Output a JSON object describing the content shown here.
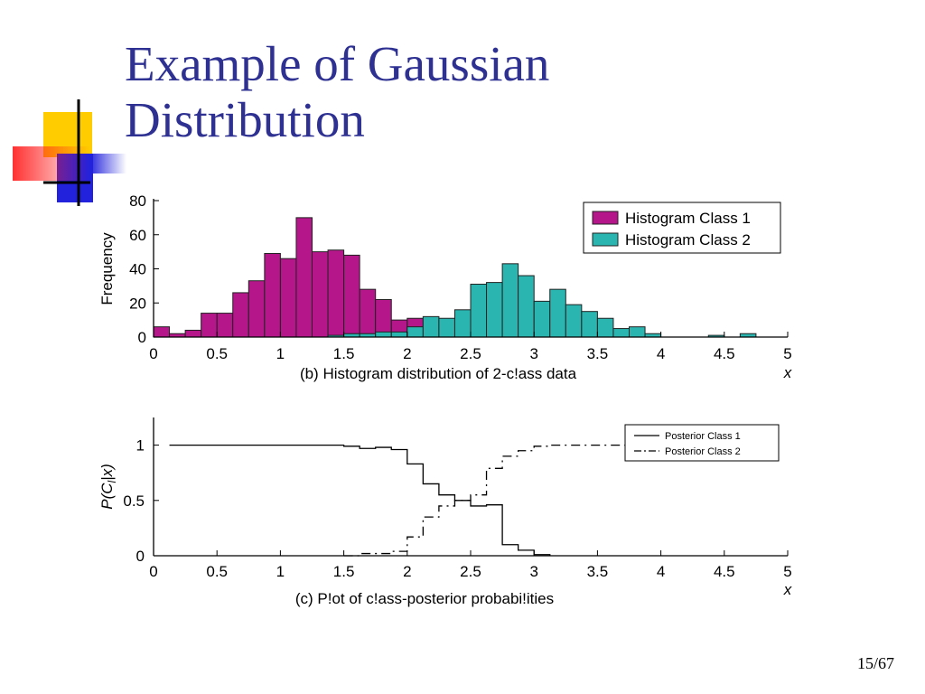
{
  "slide": {
    "title_line1": "Example of Gaussian",
    "title_line2": "Distribution",
    "slide_number": "15/67"
  },
  "decoration": {
    "icon": "colored-squares-logo"
  },
  "chart_data": [
    {
      "type": "bar",
      "subtype": "histogram",
      "title": "(b) Histogram distribution of 2-c!ass data",
      "xlabel": "x",
      "ylabel": "Frequency",
      "xlim": [
        0,
        5
      ],
      "ylim": [
        0,
        80
      ],
      "xticks": [
        "0",
        "0.5",
        "1",
        "1.5",
        "2",
        "2.5",
        "3",
        "3.5",
        "4",
        "4.5",
        "5"
      ],
      "yticks": [
        "0",
        "20",
        "40",
        "60",
        "80"
      ],
      "legend_position": "top-right",
      "bin_width": 0.125,
      "series": [
        {
          "name": "Histogram Class 1",
          "color": "#b5178b",
          "bin_starts": [
            0.0,
            0.125,
            0.25,
            0.375,
            0.5,
            0.625,
            0.75,
            0.875,
            1.0,
            1.125,
            1.25,
            1.375,
            1.5,
            1.625,
            1.75,
            1.875,
            2.0,
            2.125,
            2.25,
            2.375
          ],
          "values": [
            6,
            2,
            4,
            14,
            14,
            26,
            33,
            49,
            46,
            70,
            50,
            51,
            48,
            28,
            22,
            10,
            11,
            3,
            1,
            1
          ]
        },
        {
          "name": "Histogram Class 2",
          "color": "#2ab5b0",
          "bin_starts": [
            1.375,
            1.5,
            1.625,
            1.75,
            1.875,
            2.0,
            2.125,
            2.25,
            2.375,
            2.5,
            2.625,
            2.75,
            2.875,
            3.0,
            3.125,
            3.25,
            3.375,
            3.5,
            3.625,
            3.75,
            3.875,
            4.0,
            4.125,
            4.25,
            4.375,
            4.5,
            4.625,
            4.75
          ],
          "values": [
            1,
            2,
            2,
            3,
            3,
            6,
            12,
            11,
            16,
            31,
            32,
            43,
            36,
            21,
            28,
            19,
            15,
            11,
            5,
            6,
            2,
            0,
            0,
            0,
            1,
            0,
            2,
            0
          ]
        }
      ]
    },
    {
      "type": "line",
      "subtype": "step",
      "title": "(c) P!ot of c!ass-posterior probabi!ities",
      "xlabel": "x",
      "ylabel": "P(C",
      "ylabel_subscript": "l",
      "ylabel_suffix": "|x)",
      "xlim": [
        0,
        5
      ],
      "ylim": [
        0,
        1.25
      ],
      "xticks": [
        "0",
        "0.5",
        "1",
        "1.5",
        "2",
        "2.5",
        "3",
        "3.5",
        "4",
        "4.5",
        "5"
      ],
      "yticks": [
        "0",
        "0.5",
        "1"
      ],
      "legend_position": "top-right",
      "series": [
        {
          "name": "Posterior Class 1",
          "style": "solid",
          "x": [
            0.125,
            1.5,
            1.625,
            1.75,
            1.875,
            2.0,
            2.125,
            2.25,
            2.375,
            2.5,
            2.625,
            2.75,
            2.875,
            3.0,
            3.125
          ],
          "y": [
            1.0,
            0.99,
            0.97,
            0.98,
            0.96,
            0.83,
            0.65,
            0.55,
            0.5,
            0.45,
            0.46,
            0.1,
            0.05,
            0.01,
            0.0
          ]
        },
        {
          "name": "Posterior Class 2",
          "style": "dashdot",
          "x": [
            1.5,
            1.625,
            1.75,
            1.875,
            2.0,
            2.125,
            2.25,
            2.375,
            2.5,
            2.625,
            2.75,
            2.875,
            3.0,
            3.125,
            3.75
          ],
          "y": [
            0.0,
            0.02,
            0.02,
            0.04,
            0.17,
            0.35,
            0.45,
            0.5,
            0.55,
            0.79,
            0.9,
            0.95,
            0.99,
            1.0,
            1.0
          ]
        }
      ]
    }
  ]
}
